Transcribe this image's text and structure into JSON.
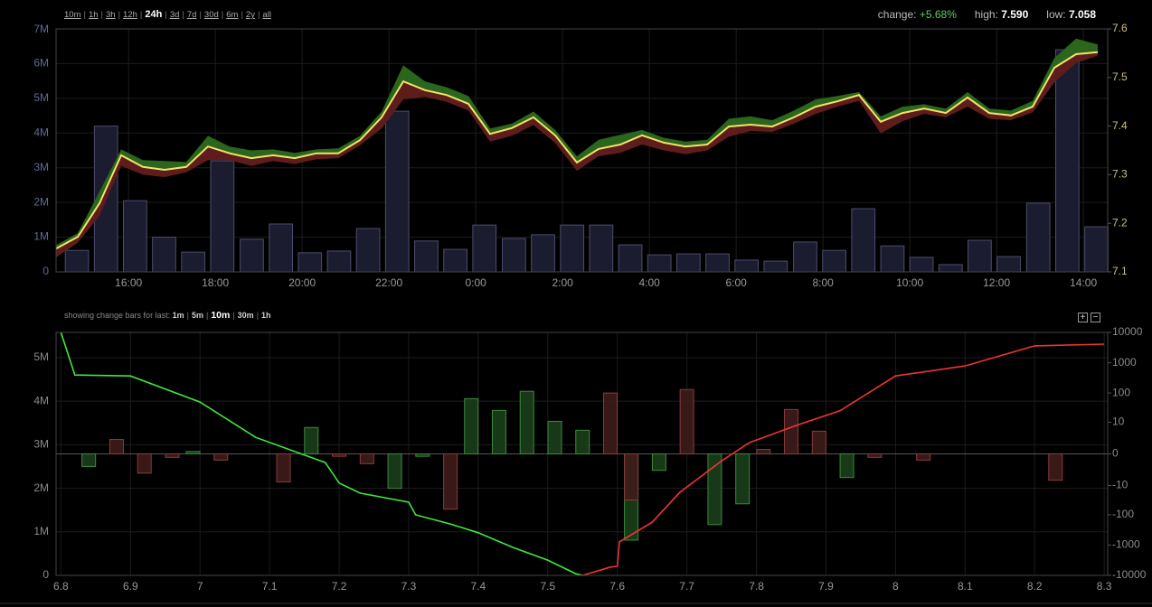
{
  "header": {
    "ranges": [
      "10m",
      "1h",
      "3h",
      "12h",
      "24h",
      "3d",
      "7d",
      "30d",
      "6m",
      "2y",
      "all"
    ],
    "active_range": 4,
    "separator": "|",
    "change_label": "change:",
    "change": "+5.68%",
    "high_label": "high:",
    "high": "7.590",
    "low_label": "low:",
    "low": "7.058"
  },
  "controls": {
    "caption": "showing change bars for last:",
    "options": [
      "1m",
      "5m",
      "10m",
      "30m",
      "1h"
    ],
    "active_option": 2,
    "buttons": [
      "+",
      "−"
    ]
  },
  "chart_data": [
    {
      "type": "combo",
      "xlim": [
        14.33,
        38.56
      ],
      "xticks": [
        {
          "value": 16,
          "label": "16:00"
        },
        {
          "value": 18,
          "label": "18:00"
        },
        {
          "value": 20,
          "label": "20:00"
        },
        {
          "value": 22,
          "label": "22:00"
        },
        {
          "value": 24,
          "label": "0:00"
        },
        {
          "value": 26,
          "label": "2:00"
        },
        {
          "value": 28,
          "label": "4:00"
        },
        {
          "value": 30,
          "label": "6:00"
        },
        {
          "value": 32,
          "label": "8:00"
        },
        {
          "value": 34,
          "label": "10:00"
        },
        {
          "value": 36,
          "label": "12:00"
        },
        {
          "value": 38,
          "label": "14:00"
        }
      ],
      "ylim": [
        0,
        7000000
      ],
      "yticks": [
        0,
        {
          "value": 1000000,
          "label": "1M"
        },
        {
          "value": 2000000,
          "label": "2M"
        },
        {
          "value": 3000000,
          "label": "3M"
        },
        {
          "value": 4000000,
          "label": "4M"
        },
        {
          "value": 5000000,
          "label": "5M"
        },
        {
          "value": 6000000,
          "label": "6M"
        },
        {
          "value": 7000000,
          "label": "7M"
        }
      ],
      "y2lim": [
        7.1,
        7.6
      ],
      "y2ticks": [
        7.1,
        7.2,
        7.3,
        7.4,
        7.5,
        7.6
      ],
      "grid": true,
      "series": [
        {
          "kind": "bar",
          "color": "#1c1c30",
          "edge": "#4c4c6c",
          "x": [
            14.81,
            15.48,
            16.15,
            16.82,
            17.49,
            18.16,
            18.84,
            19.51,
            20.18,
            20.85,
            21.52,
            22.19,
            22.86,
            23.53,
            24.2,
            24.88,
            25.55,
            26.22,
            26.89,
            27.56,
            28.23,
            28.9,
            29.57,
            30.24,
            30.91,
            31.59,
            32.26,
            32.93,
            33.6,
            34.27,
            34.94,
            35.61,
            36.28,
            36.96,
            37.63,
            38.3
          ],
          "values": [
            620000,
            4200000,
            2050000,
            1000000,
            570000,
            3200000,
            940000,
            1380000,
            550000,
            600000,
            1250000,
            4630000,
            890000,
            650000,
            1350000,
            960000,
            1070000,
            1350000,
            1350000,
            780000,
            490000,
            520000,
            520000,
            340000,
            310000,
            860000,
            620000,
            1820000,
            750000,
            420000,
            210000,
            910000,
            440000,
            1980000,
            6400000,
            1300000
          ]
        },
        {
          "kind": "band",
          "axis": "y2",
          "color": "#2a661c",
          "x": [
            14.33,
            14.83,
            15.33,
            15.83,
            16.33,
            16.83,
            17.33,
            17.83,
            18.33,
            18.83,
            19.33,
            19.83,
            20.33,
            20.83,
            21.33,
            21.83,
            22.33,
            22.83,
            23.33,
            23.83,
            24.33,
            24.83,
            25.33,
            25.83,
            26.33,
            26.83,
            27.33,
            27.83,
            28.33,
            28.83,
            29.33,
            29.83,
            30.33,
            30.83,
            31.33,
            31.83,
            32.33,
            32.83,
            33.33,
            33.83,
            34.33,
            34.83,
            35.33,
            35.83,
            36.33,
            36.83,
            37.33,
            37.83,
            38.33
          ],
          "values": [
            7.155,
            7.18,
            7.265,
            7.352,
            7.33,
            7.328,
            7.326,
            7.38,
            7.358,
            7.35,
            7.352,
            7.345,
            7.352,
            7.354,
            7.38,
            7.43,
            7.525,
            7.492,
            7.48,
            7.462,
            7.395,
            7.405,
            7.43,
            7.392,
            7.338,
            7.372,
            7.382,
            7.392,
            7.376,
            7.368,
            7.372,
            7.415,
            7.42,
            7.412,
            7.432,
            7.455,
            7.462,
            7.47,
            7.42,
            7.44,
            7.445,
            7.436,
            7.47,
            7.436,
            7.432,
            7.452,
            7.54,
            7.58,
            7.568
          ]
        },
        {
          "kind": "band",
          "axis": "y2",
          "color": "#5e1c1c",
          "x": [
            14.33,
            14.83,
            15.33,
            15.83,
            16.33,
            16.83,
            17.33,
            17.83,
            18.33,
            18.83,
            19.33,
            19.83,
            20.33,
            20.83,
            21.33,
            21.83,
            22.33,
            22.83,
            23.33,
            23.83,
            24.33,
            24.83,
            25.33,
            25.83,
            26.33,
            26.83,
            27.33,
            27.83,
            28.33,
            28.83,
            29.33,
            29.83,
            30.33,
            30.83,
            31.33,
            31.83,
            32.33,
            32.83,
            33.33,
            33.83,
            34.33,
            34.83,
            35.33,
            35.83,
            36.33,
            36.83,
            37.33,
            37.83,
            38.33
          ],
          "values": [
            7.13,
            7.16,
            7.215,
            7.318,
            7.3,
            7.295,
            7.305,
            7.33,
            7.33,
            7.318,
            7.328,
            7.322,
            7.332,
            7.334,
            7.36,
            7.395,
            7.455,
            7.46,
            7.45,
            7.432,
            7.368,
            7.38,
            7.402,
            7.365,
            7.308,
            7.338,
            7.345,
            7.362,
            7.35,
            7.342,
            7.35,
            7.378,
            7.39,
            7.388,
            7.405,
            7.425,
            7.44,
            7.452,
            7.385,
            7.41,
            7.425,
            7.418,
            7.44,
            7.415,
            7.412,
            7.428,
            7.49,
            7.53,
            7.545
          ]
        },
        {
          "kind": "line",
          "axis": "y2",
          "color": "#f2e36a",
          "x": [
            14.33,
            14.83,
            15.33,
            15.83,
            16.33,
            16.83,
            17.33,
            17.83,
            18.33,
            18.83,
            19.33,
            19.83,
            20.33,
            20.83,
            21.33,
            21.83,
            22.33,
            22.83,
            23.33,
            23.83,
            24.33,
            24.83,
            25.33,
            25.83,
            26.33,
            26.83,
            27.33,
            27.83,
            28.33,
            28.83,
            29.33,
            29.83,
            30.33,
            30.83,
            31.33,
            31.83,
            32.33,
            32.83,
            33.33,
            33.83,
            34.33,
            34.83,
            35.33,
            35.83,
            36.33,
            36.83,
            37.33,
            37.83,
            38.33
          ],
          "values": [
            7.148,
            7.172,
            7.241,
            7.34,
            7.316,
            7.31,
            7.316,
            7.358,
            7.344,
            7.334,
            7.34,
            7.334,
            7.344,
            7.344,
            7.371,
            7.418,
            7.492,
            7.474,
            7.464,
            7.446,
            7.384,
            7.396,
            7.418,
            7.381,
            7.325,
            7.353,
            7.362,
            7.381,
            7.366,
            7.358,
            7.362,
            7.399,
            7.403,
            7.399,
            7.418,
            7.44,
            7.451,
            7.464,
            7.409,
            7.427,
            7.436,
            7.427,
            7.459,
            7.427,
            7.422,
            7.44,
            7.52,
            7.548,
            7.552
          ]
        }
      ]
    },
    {
      "type": "depth",
      "xlim": [
        6.793,
        8.305
      ],
      "xticks": [
        6.8,
        6.9,
        7,
        7.1,
        7.2,
        7.3,
        7.4,
        7.5,
        7.6,
        7.7,
        7.8,
        7.9,
        8,
        8.1,
        8.2,
        8.3
      ],
      "ylim": [
        0,
        5580000
      ],
      "yticks": [
        0,
        {
          "value": 1000000,
          "label": "1M"
        },
        {
          "value": 2000000,
          "label": "2M"
        },
        {
          "value": 3000000,
          "label": "3M"
        },
        {
          "value": 4000000,
          "label": "4M"
        },
        {
          "value": 5000000,
          "label": "5M"
        }
      ],
      "y2lim": [
        -10000,
        10000
      ],
      "y2scale": "symlog",
      "y2ticks": [
        10000,
        1000,
        100,
        10,
        0,
        -10,
        -100,
        -1000,
        -10000
      ],
      "grid": true,
      "series": [
        {
          "kind": "bar",
          "axis": "y2",
          "color": "#1b3f1b",
          "edge": "#3c8a3c",
          "x": [
            6.84,
            6.99,
            7.16,
            7.28,
            7.32,
            7.39,
            7.43,
            7.47,
            7.51,
            7.55,
            7.62,
            7.66,
            7.74,
            7.78,
            7.93
          ],
          "values": [
            -1.6,
            0.2,
            6.4,
            -12.6,
            -0.2,
            65,
            26,
            114,
            10.8,
            5,
            -690,
            -2.5,
            -212,
            -43,
            -5
          ]
        },
        {
          "kind": "bar",
          "axis": "y2",
          "color": "#3f1b1b",
          "edge": "#8a3c3c",
          "x": [
            6.88,
            6.92,
            6.96,
            7.03,
            7.12,
            7.2,
            7.24,
            7.36,
            7.59,
            7.62,
            7.7,
            7.81,
            7.85,
            7.89,
            7.97,
            8.04,
            8.23
          ],
          "values": [
            2,
            -3.3,
            -0.3,
            -0.6,
            -7.4,
            -0.2,
            -1.1,
            -65,
            100,
            -32,
            131,
            0.4,
            28,
            4.6,
            -0.3,
            -0.6,
            -6.4
          ]
        },
        {
          "kind": "line",
          "color": "#3ee83e",
          "x": [
            6.8,
            6.82,
            6.9,
            7,
            7.08,
            7.18,
            7.2,
            7.23,
            7.3,
            7.31,
            7.36,
            7.4,
            7.45,
            7.5,
            7.54,
            7.55
          ],
          "values": [
            5580000,
            4600000,
            4580000,
            3980000,
            3170000,
            2590000,
            2120000,
            1890000,
            1680000,
            1390000,
            1180000,
            980000,
            640000,
            350000,
            40000,
            0
          ]
        },
        {
          "kind": "line",
          "color": "#ee3434",
          "x": [
            7.55,
            7.59,
            7.6,
            7.603,
            7.65,
            7.69,
            7.75,
            7.79,
            7.86,
            7.92,
            8,
            8.1,
            8.2,
            8.3
          ],
          "values": [
            0,
            190000,
            210000,
            770000,
            1220000,
            1910000,
            2630000,
            3050000,
            3460000,
            3780000,
            4580000,
            4810000,
            5270000,
            5310000
          ]
        }
      ]
    }
  ]
}
